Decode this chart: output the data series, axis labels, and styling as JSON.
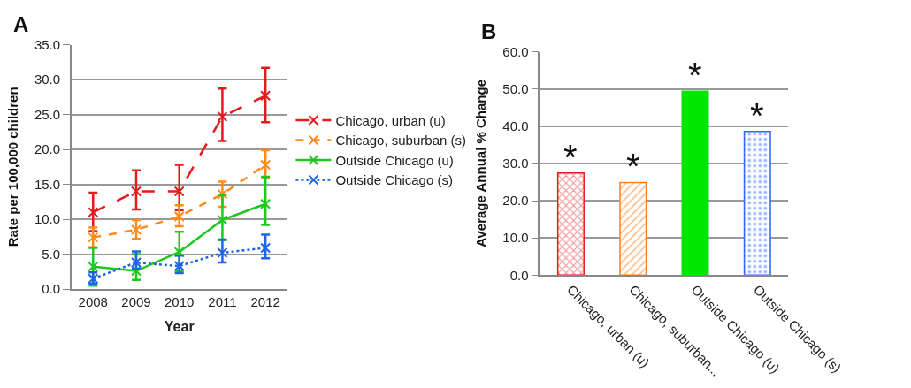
{
  "chart_data": [
    {
      "type": "line",
      "title": "A",
      "xlabel": "Year",
      "ylabel": "Rate per 100,000 children",
      "categories": [
        "2008",
        "2009",
        "2010",
        "2011",
        "2012"
      ],
      "series": [
        {
          "name": "Chicago, urban (u)",
          "color": "#e41a1c",
          "line_style": "longdash",
          "values": [
            11.0,
            14.0,
            14.0,
            24.7,
            27.7
          ],
          "errors": [
            [
              8.3,
              13.8
            ],
            [
              11.4,
              17.0
            ],
            [
              11.3,
              17.8
            ],
            [
              21.2,
              28.7
            ],
            [
              23.9,
              31.7
            ]
          ]
        },
        {
          "name": "Chicago, suburban (s)",
          "color": "#ff8c1a",
          "line_style": "dashed",
          "values": [
            7.4,
            8.5,
            10.4,
            13.6,
            17.8
          ],
          "errors": [
            [
              6.0,
              8.8
            ],
            [
              7.2,
              9.9
            ],
            [
              9.0,
              12.0
            ],
            [
              11.8,
              15.4
            ],
            [
              16.0,
              19.9
            ]
          ]
        },
        {
          "name": "Outside Chicago (u)",
          "color": "#1ec81e",
          "line_style": "solid",
          "values": [
            3.2,
            2.6,
            5.3,
            9.9,
            12.2
          ],
          "errors": [
            [
              0.5,
              5.9
            ],
            [
              1.3,
              5.0
            ],
            [
              2.5,
              8.2
            ],
            [
              7.0,
              13.5
            ],
            [
              9.2,
              16.1
            ]
          ]
        },
        {
          "name": "Outside Chicago (s)",
          "color": "#1f64e6",
          "line_style": "dotted",
          "values": [
            1.5,
            3.8,
            3.3,
            5.2,
            5.9
          ],
          "errors": [
            [
              0.8,
              2.4
            ],
            [
              2.9,
              5.4
            ],
            [
              2.3,
              4.8
            ],
            [
              3.8,
              7.1
            ],
            [
              4.4,
              7.8
            ]
          ]
        }
      ],
      "marker": "cross",
      "ylim": [
        0,
        35
      ],
      "yticks": [
        {
          "value": 0,
          "label": "0.0"
        },
        {
          "value": 5,
          "label": "5.0"
        },
        {
          "value": 10,
          "label": "10.0"
        },
        {
          "value": 15,
          "label": "15.0"
        },
        {
          "value": 20,
          "label": "20.0"
        },
        {
          "value": 25,
          "label": "25.0"
        },
        {
          "value": 30,
          "label": "30.0"
        },
        {
          "value": 35,
          "label": "35.0"
        }
      ],
      "grid": "y",
      "legend": "right"
    },
    {
      "type": "bar",
      "title": "B",
      "ylabel": "Average Annual % Change",
      "categories": [
        "Chicago, urban (u)",
        "Chicago, suburban...",
        "Outside Chicago (u)",
        "Outside Chicago (s)"
      ],
      "values": [
        27.4,
        24.9,
        49.4,
        38.6
      ],
      "colors": [
        "#e41a1c",
        "#ff7f1a",
        "#00e600",
        "#3366ff"
      ],
      "ylim": [
        0,
        60
      ],
      "yticks": [
        {
          "value": 0,
          "label": "0.0"
        },
        {
          "value": 10,
          "label": "10.0"
        },
        {
          "value": 20,
          "label": "20.0"
        },
        {
          "value": 30,
          "label": "30.0"
        },
        {
          "value": 40,
          "label": "40.0"
        },
        {
          "value": 50,
          "label": "50.0"
        },
        {
          "value": 60,
          "label": "60.0"
        }
      ],
      "grid": "y",
      "legend": false,
      "annotations": [
        {
          "text": "*",
          "x": "Chicago, urban (u)",
          "y": 27.4
        },
        {
          "text": "*",
          "x": "Chicago, suburban...",
          "y": 24.9
        },
        {
          "text": "*",
          "x": "Outside Chicago (u)",
          "y": 49.4
        },
        {
          "text": "*",
          "x": "Outside Chicago (s)",
          "y": 38.6
        }
      ]
    }
  ]
}
